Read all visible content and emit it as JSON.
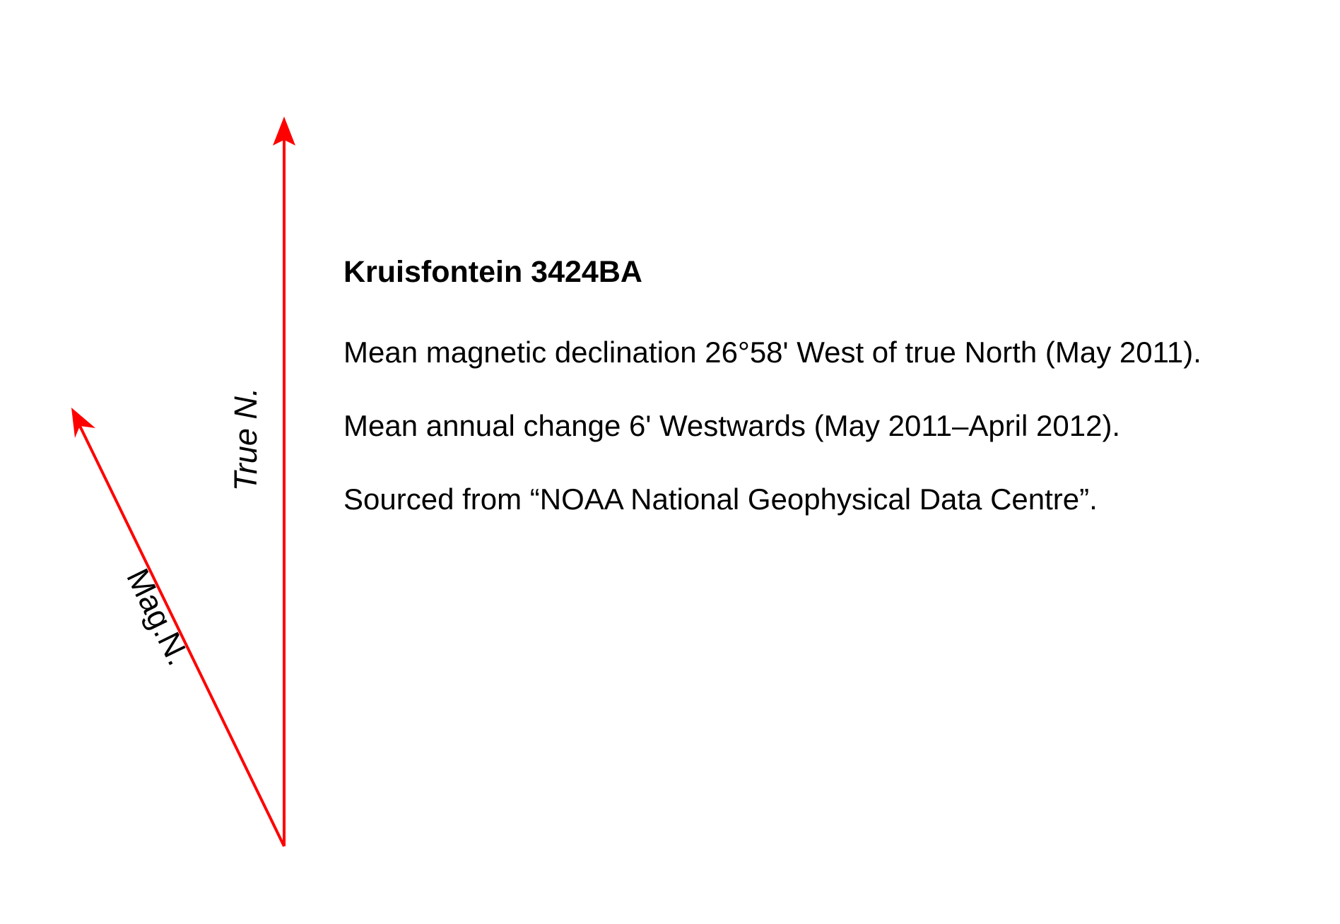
{
  "title": "Kruisfontein 3424BA",
  "lines": [
    "Mean magnetic declination 26°58' West of true North (May 2011).",
    "Mean annual change 6' Westwards (May 2011–April 2012).",
    "Sourced from “NOAA National Geophysical Data Centre”."
  ],
  "arrows": {
    "true_north_label": "True N.",
    "magnetic_north_label": "Mag.N.",
    "declination_degrees": 26.97,
    "color": "#ff0000"
  }
}
